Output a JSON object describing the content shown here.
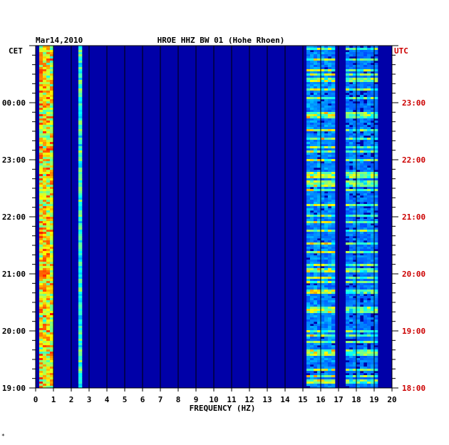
{
  "header": {
    "date": "Mar14,2010",
    "station": "HROE HHZ BW 01 (Hohe Rhoen)"
  },
  "footer": {
    "mark": "*"
  },
  "colors": {
    "background": "#0000a8",
    "left_labels": "#000000",
    "right_labels": "#cc0000",
    "gridline": "#000000"
  },
  "chart_data": {
    "type": "heatmap",
    "title": "HROE HHZ BW 01 (Hohe Rhoen)",
    "date_label": "Mar14,2010",
    "xlabel": "FREQUENCY (HZ)",
    "xlim": [
      0,
      20
    ],
    "x_ticks": [
      "0",
      "1",
      "2",
      "3",
      "4",
      "5",
      "6",
      "7",
      "8",
      "9",
      "10",
      "11",
      "12",
      "13",
      "14",
      "15",
      "16",
      "17",
      "18",
      "19",
      "20"
    ],
    "left_axis": {
      "timezone": "CET",
      "ticks": [
        {
          "label": "00:00",
          "hours_from_top": 1
        },
        {
          "label": "23:00",
          "hours_from_top": 2
        },
        {
          "label": "22:00",
          "hours_from_top": 3
        },
        {
          "label": "21:00",
          "hours_from_top": 4
        },
        {
          "label": "20:00",
          "hours_from_top": 5
        },
        {
          "label": "19:00",
          "hours_from_top": 6
        }
      ]
    },
    "right_axis": {
      "timezone": "UTC",
      "ticks": [
        {
          "label": "23:00",
          "hours_from_top": 1
        },
        {
          "label": "22:00",
          "hours_from_top": 2
        },
        {
          "label": "21:00",
          "hours_from_top": 3
        },
        {
          "label": "20:00",
          "hours_from_top": 4
        },
        {
          "label": "19:00",
          "hours_from_top": 5
        },
        {
          "label": "18:00",
          "hours_from_top": 6
        }
      ]
    },
    "time_span_hours": 6,
    "minor_ticks_per_hour": 6,
    "grid_x": true,
    "colormap": "jet",
    "energy_bands": [
      {
        "freq_from_hz": 0.2,
        "freq_to_hz": 1.0,
        "intensity": "high"
      },
      {
        "freq_from_hz": 2.4,
        "freq_to_hz": 2.6,
        "intensity": "medium"
      },
      {
        "freq_from_hz": 15.3,
        "freq_to_hz": 16.7,
        "intensity": "intermittent-high"
      },
      {
        "freq_from_hz": 17.5,
        "freq_to_hz": 19.2,
        "intensity": "intermittent-medium"
      }
    ]
  }
}
